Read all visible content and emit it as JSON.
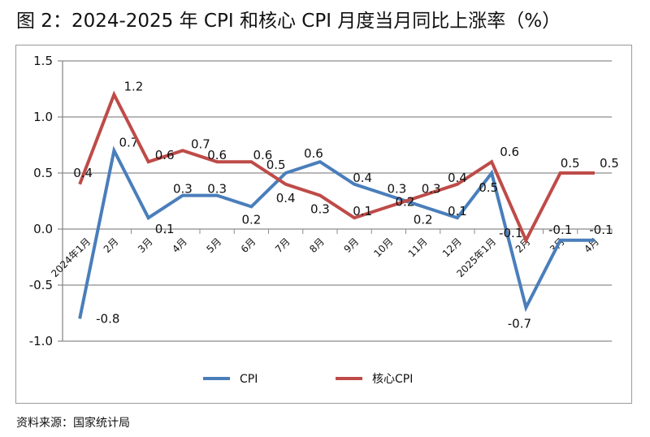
{
  "title": "图 2：2024-2025 年 CPI 和核心 CPI 月度当月同比上涨率（%）",
  "source": "资料来源：国家统计局",
  "chart_data": {
    "type": "line",
    "categories": [
      "2024年1月",
      "2月",
      "3月",
      "4月",
      "5月",
      "6月",
      "7月",
      "8月",
      "9月",
      "10月",
      "11月",
      "12月",
      "2025年1月",
      "2月",
      "3月",
      "4月"
    ],
    "ylim": [
      -1.0,
      1.5
    ],
    "yticks": [
      "1.5",
      "1.0",
      "0.5",
      "0.0",
      "-0.5",
      "-1.0"
    ],
    "grid": true,
    "legend": "bottom",
    "series": [
      {
        "name": "CPI",
        "color": "#4a7ebb",
        "values": [
          -0.8,
          0.7,
          0.1,
          0.3,
          0.3,
          0.2,
          0.5,
          0.6,
          0.4,
          0.3,
          0.2,
          0.1,
          0.5,
          -0.7,
          -0.1,
          -0.1
        ]
      },
      {
        "name": "核心CPI",
        "color": "#be4b48",
        "values": [
          0.4,
          1.2,
          0.6,
          0.7,
          0.6,
          0.6,
          0.4,
          0.3,
          0.1,
          0.2,
          0.3,
          0.4,
          0.6,
          -0.1,
          0.5,
          0.5
        ]
      }
    ]
  }
}
